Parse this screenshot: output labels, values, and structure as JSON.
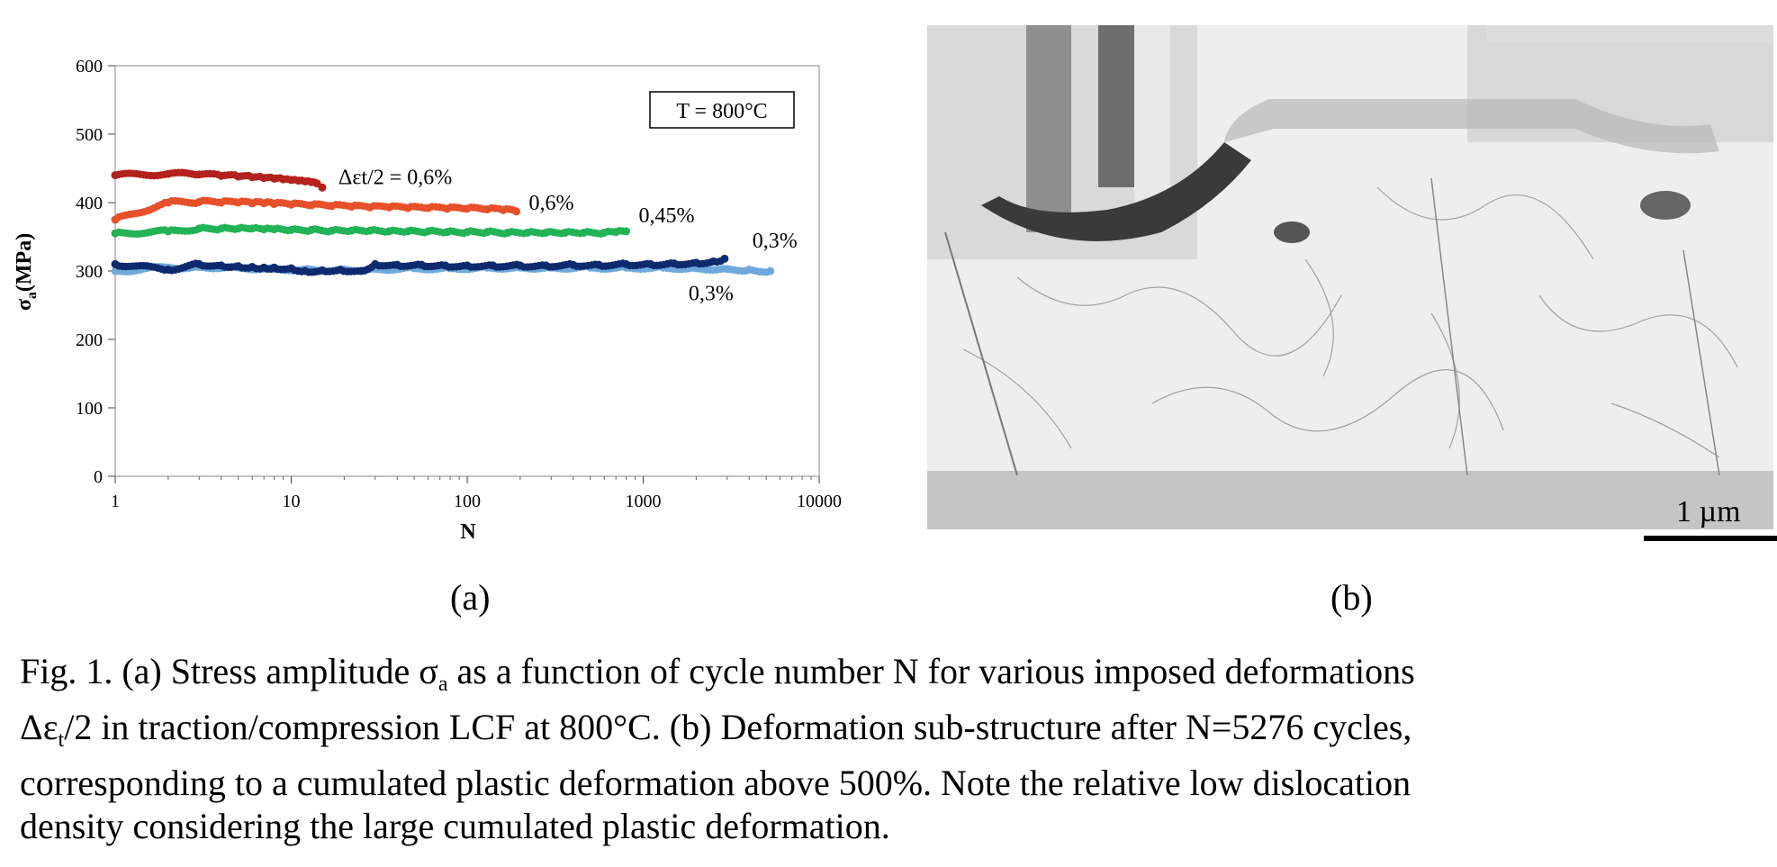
{
  "chart_data": {
    "type": "scatter",
    "x_scale": "log",
    "xlabel": "N",
    "ylabel": "σa(MPa)",
    "xlim": [
      1,
      10000
    ],
    "ylim": [
      0,
      600
    ],
    "x_ticks": [
      "1",
      "10",
      "100",
      "1000",
      "10000"
    ],
    "y_ticks": [
      "0",
      "100",
      "200",
      "300",
      "400",
      "500",
      "600"
    ],
    "annotation": "T = 800°C",
    "series": [
      {
        "name": "Δεt/2 = 0,6%",
        "color": "#b3221d",
        "x": [
          1,
          2,
          3,
          4,
          5,
          6,
          7,
          8,
          9,
          10,
          11,
          12,
          13,
          14,
          15
        ],
        "y": [
          440,
          442,
          441,
          439,
          438,
          437,
          436,
          435,
          434,
          433,
          432,
          431,
          430,
          428,
          422
        ]
      },
      {
        "name": "0,6%",
        "color": "#e8502a",
        "x": [
          1,
          2,
          3,
          4,
          5,
          6,
          7,
          8,
          10,
          13,
          17,
          22,
          28,
          36,
          46,
          60,
          77,
          100,
          130,
          160,
          190
        ],
        "y": [
          375,
          400,
          401,
          400,
          400,
          399,
          399,
          398,
          397,
          396,
          395,
          394,
          393,
          393,
          392,
          392,
          391,
          391,
          390,
          389,
          387
        ]
      },
      {
        "name": "0,45%",
        "color": "#22b357",
        "x": [
          1,
          2,
          3,
          4,
          5,
          6,
          7,
          8,
          10,
          13,
          17,
          22,
          28,
          36,
          46,
          60,
          77,
          100,
          130,
          170,
          220,
          280,
          360,
          460,
          600,
          700,
          800
        ],
        "y": [
          355,
          358,
          362,
          362,
          362,
          362,
          361,
          361,
          360,
          360,
          359,
          359,
          359,
          358,
          358,
          358,
          357,
          357,
          357,
          356,
          356,
          356,
          356,
          356,
          356,
          357,
          358
        ]
      },
      {
        "name": "0,3%",
        "color": "#6fa8dc",
        "x": [
          1,
          2,
          3,
          5,
          8,
          13,
          20,
          30,
          50,
          80,
          130,
          200,
          300,
          500,
          800,
          1300,
          2000,
          3000,
          4000,
          5276
        ],
        "y": [
          300,
          305,
          306,
          305,
          303,
          302,
          302,
          303,
          304,
          304,
          305,
          305,
          305,
          305,
          305,
          305,
          304,
          303,
          302,
          300
        ]
      },
      {
        "name": "0,3%",
        "color": "#0e2a6e",
        "x": [
          1,
          2,
          3,
          4,
          5,
          6,
          7,
          8,
          10,
          12,
          15,
          19,
          25,
          30,
          40,
          55,
          75,
          100,
          140,
          200,
          280,
          400,
          560,
          800,
          1100,
          1500,
          2000,
          2500,
          2900
        ],
        "y": [
          310,
          302,
          310,
          308,
          307,
          306,
          305,
          305,
          304,
          300,
          301,
          302,
          300,
          310,
          309,
          309,
          308,
          308,
          308,
          308,
          308,
          309,
          309,
          310,
          310,
          311,
          312,
          314,
          318
        ]
      }
    ]
  },
  "panels": {
    "a": "(a)",
    "b": "(b)"
  },
  "scale_bar": "1 µm",
  "caption": {
    "line1_pre": "Fig. 1. (a) Stress amplitude σ",
    "line1_sub": "a",
    "line1_post": " as a function of cycle number N for various imposed deformations",
    "line2_pre": "Δε",
    "line2_sub": "t",
    "line2_post": "/2 in traction/compression LCF at 800°C. (b) Deformation sub-structure after N=5276 cycles,",
    "line3": "corresponding to a cumulated plastic deformation above 500%. Note the relative low dislocation",
    "line4": "density considering the large cumulated plastic deformation."
  }
}
